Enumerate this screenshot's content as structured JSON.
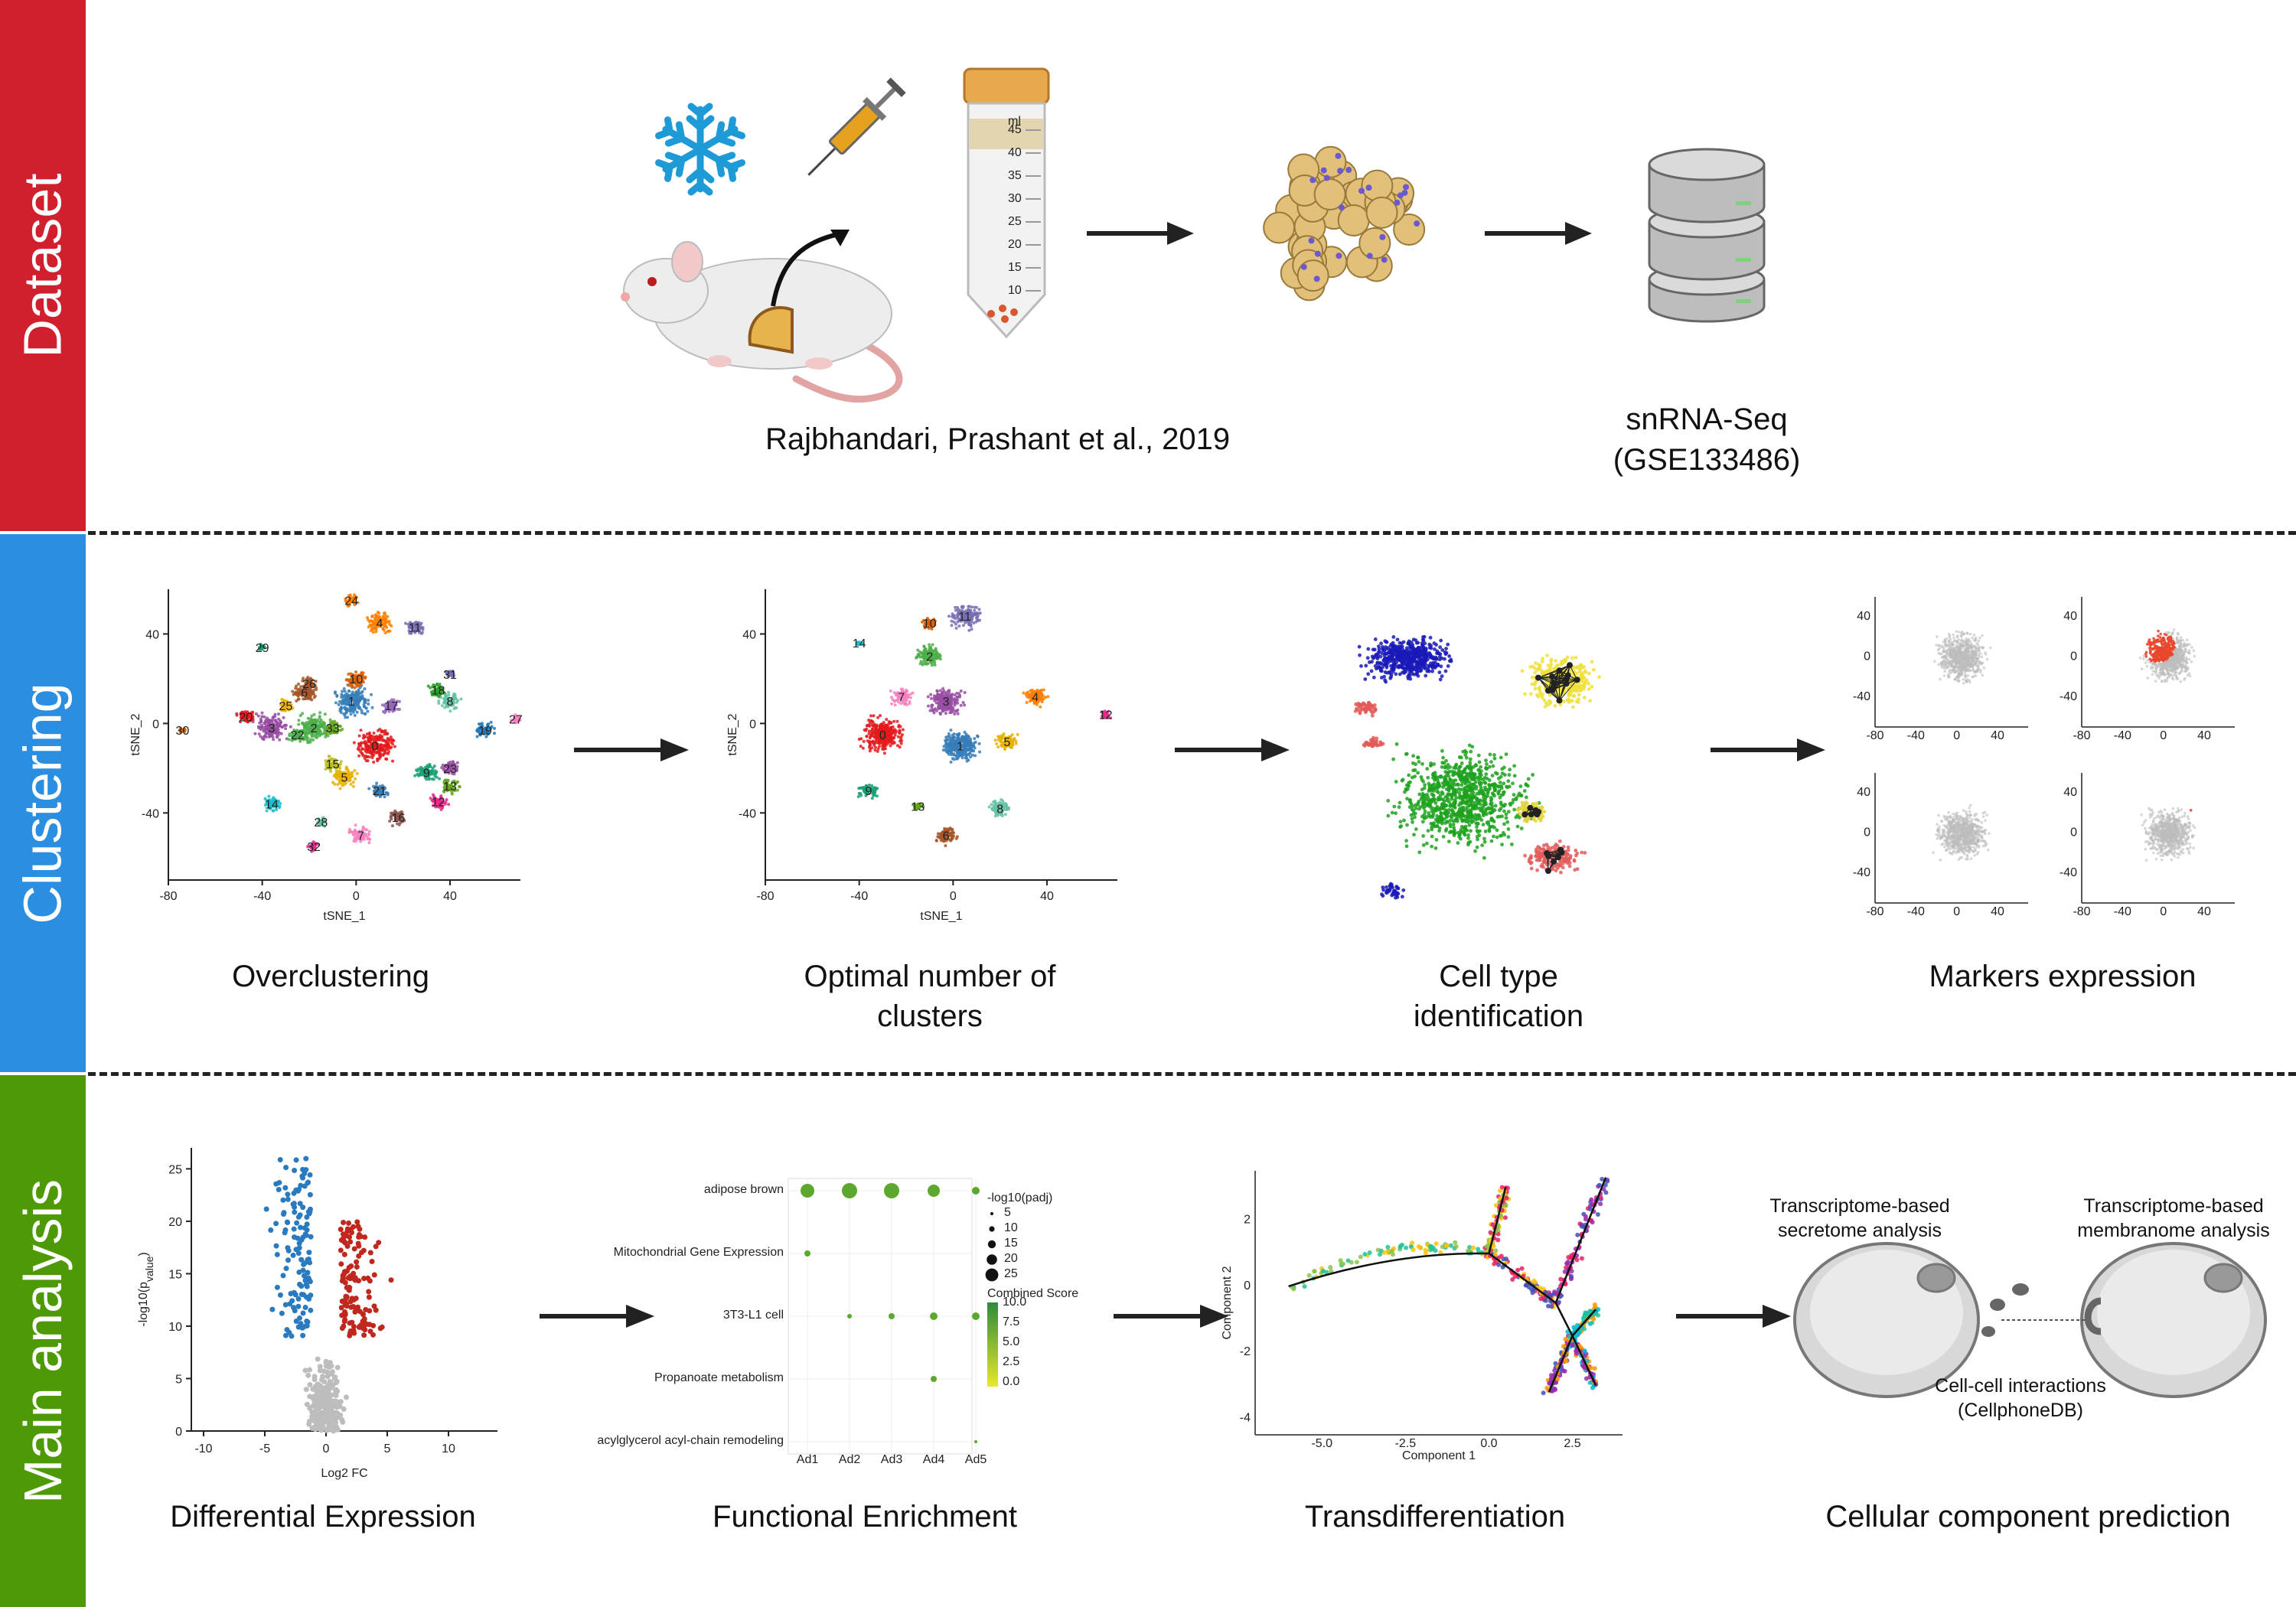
{
  "sections": {
    "dataset": {
      "label": "Dataset",
      "color": "#D0202E"
    },
    "clustering": {
      "label": "Clustering",
      "color": "#2A8FE0"
    },
    "main": {
      "label": "Main analysis",
      "color": "#4E9A06"
    }
  },
  "dataset": {
    "citation": "Rajbhandari, Prashant et al., 2019",
    "seq_line1": "snRNA-Seq",
    "seq_line2": "(GSE133486)",
    "tube_ticks": [
      "45",
      "40",
      "35",
      "30",
      "25",
      "20",
      "15",
      "10"
    ],
    "tube_unit": "ml"
  },
  "clustering": {
    "overclustering": "Overclustering",
    "optimal_line1": "Optimal number of",
    "optimal_line2": "clusters",
    "celltype_line1": "Cell type",
    "celltype_line2": "identification",
    "markers": "Markers expression",
    "tsne_x_label": "tSNE_1",
    "tsne_y_label": "tSNE_2",
    "tsne_x_ticks": [
      "-80",
      "-40",
      "0",
      "40"
    ],
    "tsne_y_ticks": [
      "40",
      "0",
      "-40"
    ],
    "cluster_labels_over": [
      "0",
      "1",
      "2",
      "3",
      "4",
      "5",
      "6",
      "7",
      "8",
      "9",
      "10",
      "11",
      "12",
      "13",
      "14",
      "15",
      "16",
      "17",
      "18",
      "19",
      "20",
      "21",
      "22",
      "23",
      "24",
      "25",
      "26",
      "27",
      "28",
      "29",
      "30",
      "31",
      "32",
      "33"
    ],
    "cluster_labels_opt": [
      "0",
      "1",
      "2",
      "3",
      "4",
      "5",
      "6",
      "7",
      "8",
      "9",
      "10",
      "11",
      "12",
      "13",
      "14"
    ]
  },
  "main": {
    "diffexp": "Differential Expression",
    "funcenrich": "Functional Enrichment",
    "transdiff": "Transdifferentiation",
    "cellcomp": "Cellular component prediction",
    "volcano": {
      "xlabel": "Log2 FC",
      "ylabel": "-log10(p",
      "ylabel_sub": "value",
      "ylabel_end": ")",
      "x_ticks": [
        "-10",
        "-5",
        "0",
        "5",
        "10"
      ],
      "y_ticks": [
        "0",
        "5",
        "10",
        "15",
        "20",
        "25"
      ]
    },
    "enrich": {
      "rows": [
        "adipose brown",
        "Mitochondrial Gene Expression",
        "3T3-L1 cell",
        "Propanoate metabolism",
        "acylglycerol acyl-chain remodeling"
      ],
      "row_colors": [
        "#2AA198",
        "#E08A2E",
        "#D0202E",
        "#2B3FBF",
        "#9B2AA0"
      ],
      "cols": [
        "Ad1",
        "Ad2",
        "Ad3",
        "Ad4",
        "Ad5"
      ],
      "legend_size_title": "-log10(padj)",
      "legend_sizes": [
        "5",
        "10",
        "15",
        "20",
        "25"
      ],
      "legend_color_title": "Combined Score",
      "legend_colors": [
        "10.0",
        "7.5",
        "5.0",
        "2.5",
        "0.0"
      ]
    },
    "trajectory": {
      "xlabel": "Component 1",
      "ylabel": "Component 2",
      "x_ticks": [
        "-5.0",
        "-2.5",
        "0.0",
        "2.5"
      ],
      "y_ticks": [
        "2",
        "0",
        "-2",
        "-4"
      ]
    },
    "secretome_line1": "Transcriptome-based",
    "secretome_line2": "secretome analysis",
    "membranome_line1": "Transcriptome-based",
    "membranome_line2": "membranome analysis",
    "cci_line1": "Cell-cell interactions",
    "cci_line2": "(CellphoneDB)"
  }
}
